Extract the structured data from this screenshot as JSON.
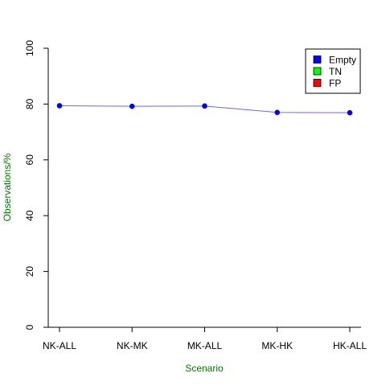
{
  "chart_data": {
    "type": "line",
    "title": "",
    "xlabel": "Scenario",
    "ylabel": "Observations/%",
    "categories": [
      "NK-ALL",
      "NK-MK",
      "MK-ALL",
      "MK-HK",
      "HK-ALL"
    ],
    "series": [
      {
        "name": "Empty",
        "values": [
          79.4,
          79.2,
          79.3,
          77.0,
          76.9
        ],
        "color": "#0000ff"
      }
    ],
    "ylim": [
      0,
      100
    ],
    "yticks": [
      0,
      20,
      40,
      60,
      80,
      100
    ],
    "grid": false,
    "legend": {
      "position": "top-right",
      "entries": [
        {
          "label": "Empty",
          "color": "#0000ff"
        },
        {
          "label": "TN",
          "color": "#00ff00"
        },
        {
          "label": "FP",
          "color": "#ff0000"
        }
      ]
    },
    "colors": {
      "line": "#6666ff",
      "point": "#0000ff",
      "axis_label": "#007700"
    }
  }
}
